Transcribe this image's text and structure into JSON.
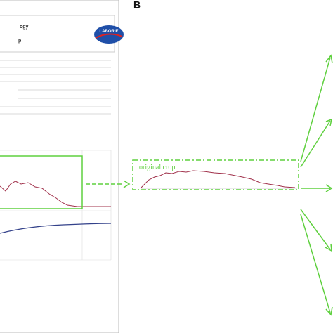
{
  "panel_label": "B",
  "document": {
    "title_fragment_1": "ogy",
    "title_fragment_2": "p",
    "logo": "LABORIE"
  },
  "crop": {
    "label": "original crop"
  }
}
